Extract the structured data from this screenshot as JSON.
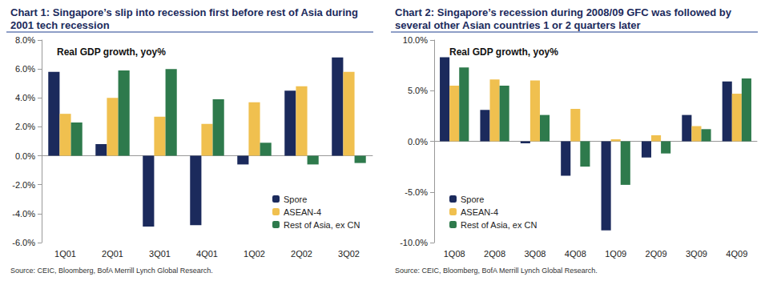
{
  "chart_data": [
    {
      "type": "bar",
      "title": "Chart 1: Singapore’s slip into recession first before rest of Asia during 2001 tech recession",
      "subtitle": "Real GDP growth, yoy%",
      "annotations": [
        "Source: CEIC, Bloomberg, BofA Merrill Lynch Global Research."
      ],
      "categories": [
        "1Q01",
        "2Q01",
        "3Q01",
        "4Q01",
        "1Q02",
        "2Q02",
        "3Q02"
      ],
      "series": [
        {
          "name": "Spore",
          "color": "#1b2a5c",
          "values": [
            5.8,
            0.8,
            -4.9,
            -4.8,
            -0.6,
            4.5,
            6.8
          ]
        },
        {
          "name": "ASEAN-4",
          "color": "#f0c04f",
          "values": [
            2.9,
            4.0,
            2.7,
            2.2,
            3.7,
            4.8,
            5.8
          ]
        },
        {
          "name": "Rest of Asia, ex CN",
          "color": "#2e7a4c",
          "values": [
            2.3,
            5.9,
            6.0,
            3.9,
            0.9,
            -0.6,
            -0.5
          ]
        }
      ],
      "ylim": [
        -6,
        8
      ],
      "yticks": [
        {
          "value": -6,
          "label": "-6.0%"
        },
        {
          "value": -4,
          "label": "-4.0%"
        },
        {
          "value": -2,
          "label": "-2.0%"
        },
        {
          "value": 0,
          "label": "0.0%"
        },
        {
          "value": 2,
          "label": "2.0%"
        },
        {
          "value": 4,
          "label": "4.0%"
        },
        {
          "value": 6,
          "label": "6.0%"
        },
        {
          "value": 8,
          "label": "8.0%"
        }
      ],
      "grid": false,
      "legend": "lower right"
    },
    {
      "type": "bar",
      "title": "Chart 2: Singapore’s recession during 2008/09 GFC was followed by several other Asian countries 1 or 2 quarters later",
      "subtitle": "Real GDP growth, yoy%",
      "annotations": [
        "Source: CEIC, Bloomberg, BofA Merrill Lynch Global Research."
      ],
      "categories": [
        "1Q08",
        "2Q08",
        "3Q08",
        "4Q08",
        "1Q09",
        "2Q09",
        "3Q09",
        "4Q09"
      ],
      "series": [
        {
          "name": "Spore",
          "color": "#1b2a5c",
          "values": [
            8.3,
            3.1,
            -0.2,
            -3.4,
            -8.8,
            -1.6,
            2.6,
            5.9
          ]
        },
        {
          "name": "ASEAN-4",
          "color": "#f0c04f",
          "values": [
            5.5,
            6.1,
            6.0,
            3.2,
            0.2,
            0.6,
            1.5,
            4.7
          ]
        },
        {
          "name": "Rest of Asia, ex CN",
          "color": "#2e7a4c",
          "values": [
            7.3,
            5.5,
            2.6,
            -2.5,
            -4.3,
            -1.2,
            1.2,
            6.2
          ]
        }
      ],
      "ylim": [
        -10,
        10
      ],
      "yticks": [
        {
          "value": -10,
          "label": "-10.0%"
        },
        {
          "value": -5,
          "label": "-5.0%"
        },
        {
          "value": 0,
          "label": "0.0%"
        },
        {
          "value": 5,
          "label": "5.0%"
        },
        {
          "value": 10,
          "label": "10.0%"
        }
      ],
      "grid": false,
      "legend": "lower left"
    }
  ]
}
